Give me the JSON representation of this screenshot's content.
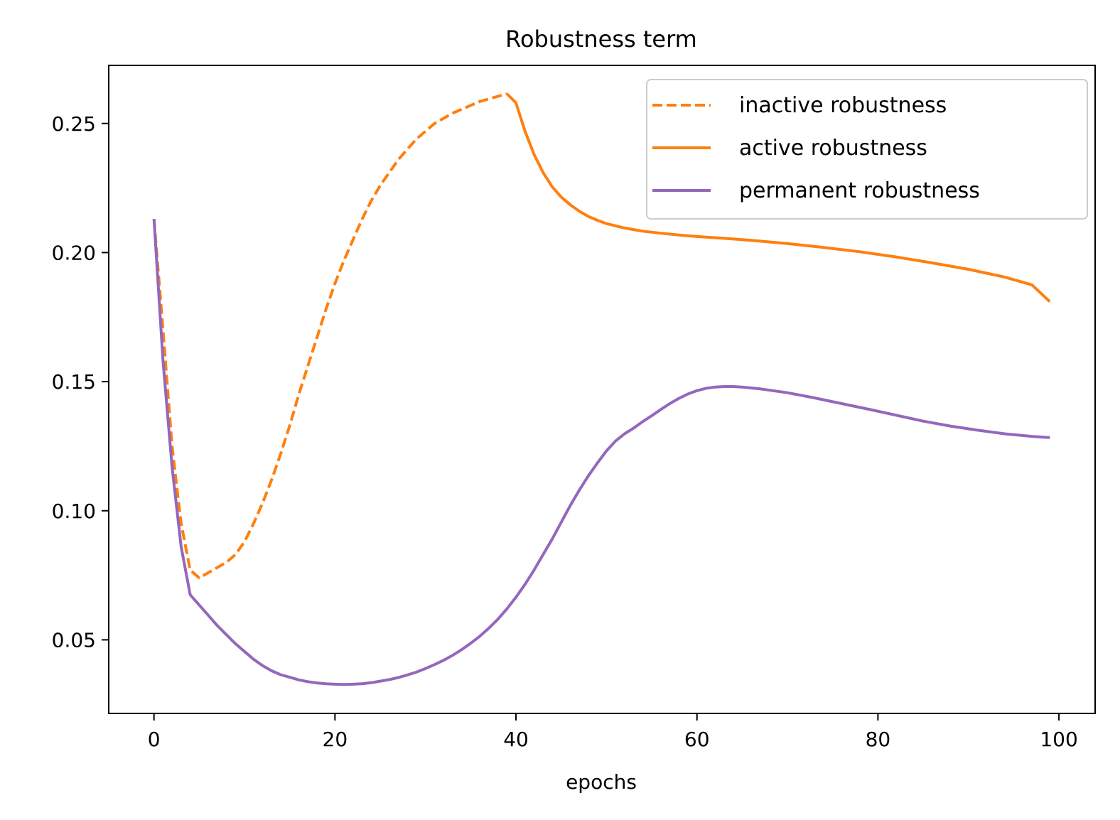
{
  "chart_data": {
    "type": "line",
    "title": "Robustness term",
    "xlabel": "epochs",
    "ylabel": "",
    "xlim": [
      -5,
      104
    ],
    "ylim": [
      0.0215,
      0.2725
    ],
    "xticks": [
      0,
      20,
      40,
      60,
      80,
      100
    ],
    "xtick_labels": [
      "0",
      "20",
      "40",
      "60",
      "80",
      "100"
    ],
    "yticks": [
      0.05,
      0.1,
      0.15,
      0.2,
      0.25
    ],
    "ytick_labels": [
      "0.05",
      "0.10",
      "0.15",
      "0.20",
      "0.25"
    ],
    "grid": false,
    "legend_position": "top-right",
    "series": [
      {
        "name": "inactive robustness",
        "style": "dashed",
        "color": "#ff7f0e",
        "points": [
          [
            0,
            0.213
          ],
          [
            1,
            0.17
          ],
          [
            2,
            0.125
          ],
          [
            3,
            0.095
          ],
          [
            4,
            0.077
          ],
          [
            5,
            0.074
          ],
          [
            6,
            0.076
          ],
          [
            7,
            0.078
          ],
          [
            8,
            0.08
          ],
          [
            9,
            0.083
          ],
          [
            10,
            0.088
          ],
          [
            11,
            0.095
          ],
          [
            12,
            0.103
          ],
          [
            13,
            0.112
          ],
          [
            14,
            0.122
          ],
          [
            15,
            0.133
          ],
          [
            16,
            0.145
          ],
          [
            17,
            0.156
          ],
          [
            18,
            0.167
          ],
          [
            19,
            0.178
          ],
          [
            20,
            0.188
          ],
          [
            21,
            0.197
          ],
          [
            22,
            0.205
          ],
          [
            23,
            0.213
          ],
          [
            24,
            0.22
          ],
          [
            25,
            0.226
          ],
          [
            26,
            0.231
          ],
          [
            27,
            0.236
          ],
          [
            28,
            0.24
          ],
          [
            29,
            0.244
          ],
          [
            30,
            0.247
          ],
          [
            31,
            0.25
          ],
          [
            32,
            0.252
          ],
          [
            33,
            0.254
          ],
          [
            34,
            0.2555
          ],
          [
            35,
            0.257
          ],
          [
            36,
            0.2585
          ],
          [
            37,
            0.2595
          ],
          [
            38,
            0.2605
          ],
          [
            39,
            0.2615
          ]
        ]
      },
      {
        "name": " active robustness",
        "style": "solid",
        "color": "#ff7f0e",
        "points": [
          [
            39,
            0.2615
          ],
          [
            40,
            0.258
          ],
          [
            41,
            0.247
          ],
          [
            42,
            0.238
          ],
          [
            43,
            0.231
          ],
          [
            44,
            0.2255
          ],
          [
            45,
            0.2215
          ],
          [
            46,
            0.2185
          ],
          [
            47,
            0.216
          ],
          [
            48,
            0.214
          ],
          [
            49,
            0.2125
          ],
          [
            50,
            0.2112
          ],
          [
            52,
            0.2095
          ],
          [
            54,
            0.2083
          ],
          [
            56,
            0.2075
          ],
          [
            58,
            0.2068
          ],
          [
            60,
            0.2062
          ],
          [
            63,
            0.2055
          ],
          [
            66,
            0.2047
          ],
          [
            70,
            0.2035
          ],
          [
            74,
            0.202
          ],
          [
            78,
            0.2003
          ],
          [
            82,
            0.1983
          ],
          [
            86,
            0.196
          ],
          [
            90,
            0.1935
          ],
          [
            94,
            0.1905
          ],
          [
            97,
            0.1875
          ],
          [
            99,
            0.181
          ]
        ]
      },
      {
        "name": "permanent robustness",
        "style": "solid",
        "color": "#9467bd",
        "points": [
          [
            0,
            0.213
          ],
          [
            1,
            0.158
          ],
          [
            2,
            0.117
          ],
          [
            3,
            0.086
          ],
          [
            4,
            0.0675
          ],
          [
            5,
            0.0635
          ],
          [
            6,
            0.0595
          ],
          [
            7,
            0.0555
          ],
          [
            8,
            0.052
          ],
          [
            9,
            0.0485
          ],
          [
            10,
            0.0455
          ],
          [
            11,
            0.0425
          ],
          [
            12,
            0.04
          ],
          [
            13,
            0.038
          ],
          [
            14,
            0.0365
          ],
          [
            15,
            0.0355
          ],
          [
            16,
            0.0345
          ],
          [
            17,
            0.0338
          ],
          [
            18,
            0.0333
          ],
          [
            19,
            0.033
          ],
          [
            20,
            0.0328
          ],
          [
            21,
            0.0327
          ],
          [
            22,
            0.0328
          ],
          [
            23,
            0.033
          ],
          [
            24,
            0.0334
          ],
          [
            25,
            0.034
          ],
          [
            26,
            0.0346
          ],
          [
            27,
            0.0354
          ],
          [
            28,
            0.0364
          ],
          [
            29,
            0.0375
          ],
          [
            30,
            0.0389
          ],
          [
            31,
            0.0404
          ],
          [
            32,
            0.0421
          ],
          [
            33,
            0.044
          ],
          [
            34,
            0.0462
          ],
          [
            35,
            0.0487
          ],
          [
            36,
            0.0514
          ],
          [
            37,
            0.0545
          ],
          [
            38,
            0.058
          ],
          [
            39,
            0.062
          ],
          [
            40,
            0.0665
          ],
          [
            41,
            0.0715
          ],
          [
            42,
            0.077
          ],
          [
            43,
            0.083
          ],
          [
            44,
            0.089
          ],
          [
            45,
            0.0955
          ],
          [
            46,
            0.102
          ],
          [
            47,
            0.108
          ],
          [
            48,
            0.1135
          ],
          [
            49,
            0.1185
          ],
          [
            50,
            0.1232
          ],
          [
            51,
            0.127
          ],
          [
            52,
            0.1298
          ],
          [
            53,
            0.132
          ],
          [
            54,
            0.1345
          ],
          [
            55,
            0.1368
          ],
          [
            56,
            0.1392
          ],
          [
            57,
            0.1415
          ],
          [
            58,
            0.1435
          ],
          [
            59,
            0.1452
          ],
          [
            60,
            0.1465
          ],
          [
            61,
            0.1474
          ],
          [
            62,
            0.1479
          ],
          [
            63,
            0.1481
          ],
          [
            64,
            0.1481
          ],
          [
            65,
            0.1479
          ],
          [
            67,
            0.1472
          ],
          [
            70,
            0.1457
          ],
          [
            73,
            0.1437
          ],
          [
            76,
            0.1415
          ],
          [
            79,
            0.1393
          ],
          [
            82,
            0.137
          ],
          [
            85,
            0.1347
          ],
          [
            88,
            0.1328
          ],
          [
            91,
            0.1312
          ],
          [
            94,
            0.1298
          ],
          [
            97,
            0.1288
          ],
          [
            99,
            0.1283
          ]
        ]
      }
    ]
  }
}
